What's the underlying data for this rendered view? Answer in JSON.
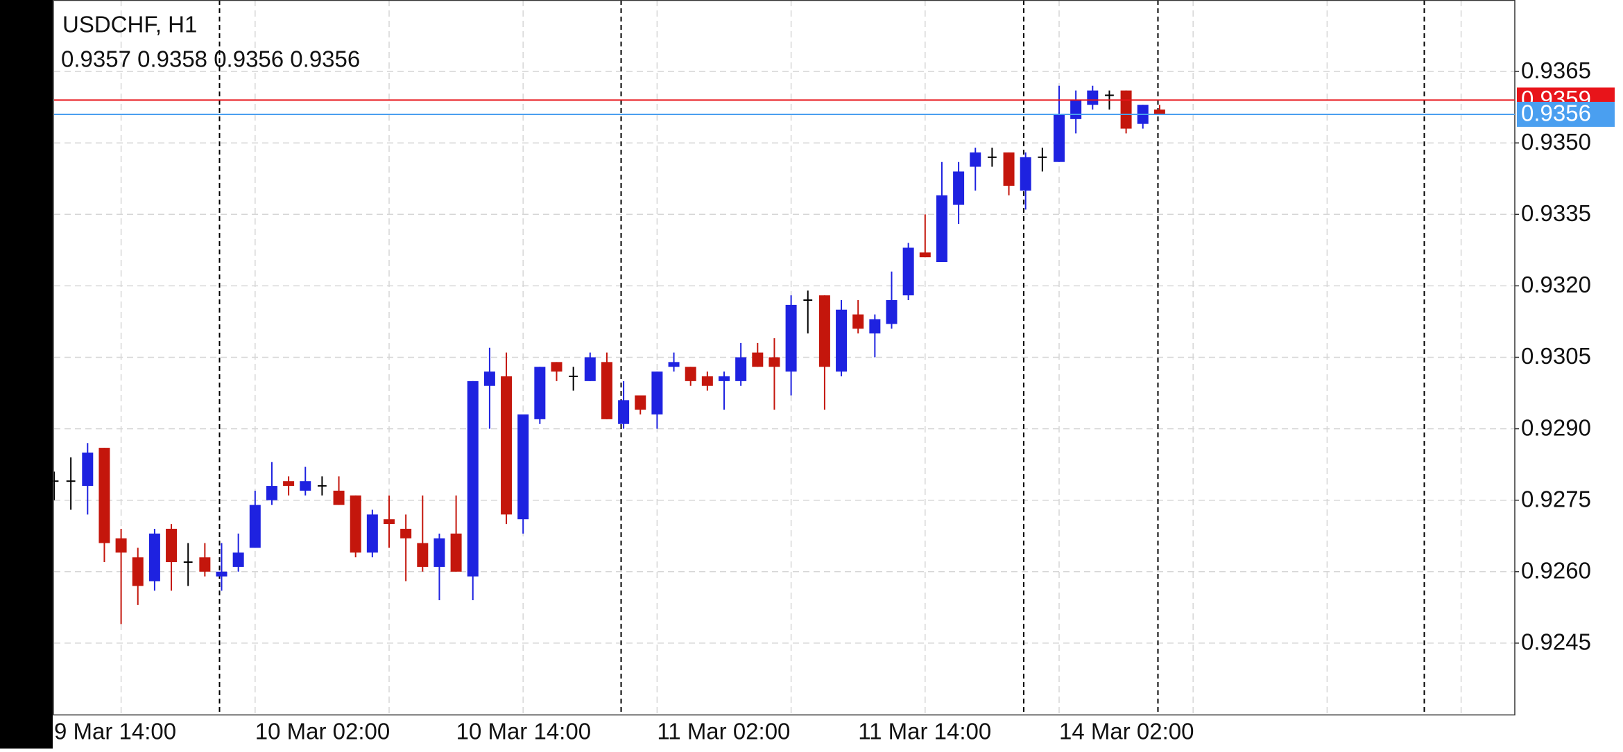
{
  "chart_data": {
    "type": "candlestick",
    "title": "USDCHF, H1",
    "subtitle": "0.9357 0.9358 0.9356 0.9356",
    "categories": [
      "9 Mar 14:00",
      null,
      null,
      null,
      null,
      null,
      null,
      null,
      null,
      null,
      null,
      null,
      "10 Mar 02:00",
      null,
      null,
      null,
      null,
      null,
      null,
      null,
      null,
      null,
      null,
      null,
      "10 Mar 14:00",
      null,
      null,
      null,
      null,
      null,
      null,
      null,
      null,
      null,
      null,
      null,
      "11 Mar 02:00",
      null,
      null,
      null,
      null,
      null,
      null,
      null,
      null,
      null,
      null,
      null,
      "11 Mar 14:00",
      null,
      null,
      null,
      null,
      null,
      null,
      null,
      null,
      null,
      null,
      null,
      "14 Mar 02:00",
      null,
      null,
      null,
      null,
      null,
      null
    ],
    "open": [
      0.9279,
      0.9279,
      0.9278,
      0.9286,
      0.9267,
      0.9263,
      0.9258,
      0.9269,
      0.9262,
      0.9263,
      0.9259,
      0.9261,
      0.9265,
      0.9275,
      0.9279,
      0.9277,
      0.9278,
      0.9277,
      0.9276,
      0.9264,
      0.9271,
      0.9269,
      0.9266,
      0.9261,
      0.9268,
      0.9259,
      0.9299,
      0.9301,
      0.9271,
      0.9292,
      0.9304,
      0.9301,
      0.93,
      0.9304,
      0.9291,
      0.9297,
      0.9293,
      0.9303,
      0.9303,
      0.9301,
      0.93,
      0.93,
      0.9306,
      0.9305,
      0.9302,
      0.9317,
      0.9318,
      0.9302,
      0.9314,
      0.931,
      0.9312,
      0.9318,
      0.9327,
      0.9325,
      0.9337,
      0.9345,
      0.9347,
      0.9348,
      0.934,
      0.9347,
      0.9346,
      0.9355,
      0.9358,
      0.936,
      0.9361,
      0.9354,
      0.9357
    ],
    "high": [
      0.9281,
      0.9284,
      0.9287,
      0.9286,
      0.9269,
      0.9265,
      0.9269,
      0.927,
      0.9266,
      0.9266,
      0.9266,
      0.9268,
      0.9277,
      0.9283,
      0.928,
      0.9282,
      0.928,
      0.928,
      0.9276,
      0.9273,
      0.9276,
      0.9272,
      0.9276,
      0.9268,
      0.9276,
      0.93,
      0.9307,
      0.9306,
      0.9293,
      0.9303,
      0.9304,
      0.9303,
      0.9306,
      0.9306,
      0.93,
      0.9297,
      0.9302,
      0.9306,
      0.9303,
      0.9302,
      0.9302,
      0.9308,
      0.9308,
      0.9309,
      0.9318,
      0.9319,
      0.9318,
      0.9317,
      0.9317,
      0.9314,
      0.9323,
      0.9329,
      0.9335,
      0.9346,
      0.9346,
      0.9349,
      0.9349,
      0.9348,
      0.9348,
      0.9349,
      0.9362,
      0.9361,
      0.9362,
      0.9361,
      0.9361,
      0.9358,
      0.9358
    ],
    "low": [
      0.9275,
      0.9273,
      0.9272,
      0.9262,
      0.9249,
      0.9253,
      0.9256,
      0.9256,
      0.9257,
      0.9259,
      0.9256,
      0.926,
      0.9265,
      0.9274,
      0.9276,
      0.9276,
      0.9276,
      0.9274,
      0.9263,
      0.9263,
      0.9265,
      0.9258,
      0.926,
      0.9254,
      0.926,
      0.9254,
      0.929,
      0.927,
      0.9268,
      0.9291,
      0.93,
      0.9298,
      0.93,
      0.9292,
      0.929,
      0.9293,
      0.929,
      0.9302,
      0.9299,
      0.9298,
      0.9294,
      0.9299,
      0.9303,
      0.9294,
      0.9297,
      0.931,
      0.9294,
      0.9301,
      0.931,
      0.9305,
      0.9311,
      0.9317,
      0.9326,
      0.9325,
      0.9333,
      0.934,
      0.9345,
      0.9339,
      0.9336,
      0.9344,
      0.9346,
      0.9352,
      0.9357,
      0.9357,
      0.9352,
      0.9353,
      0.9356
    ],
    "close": [
      0.9279,
      0.9279,
      0.9285,
      0.9266,
      0.9264,
      0.9257,
      0.9268,
      0.9262,
      0.9262,
      0.926,
      0.926,
      0.9264,
      0.9274,
      0.9278,
      0.9278,
      0.9279,
      0.9278,
      0.9274,
      0.9264,
      0.9272,
      0.927,
      0.9267,
      0.9261,
      0.9267,
      0.926,
      0.93,
      0.9302,
      0.9272,
      0.9293,
      0.9303,
      0.9302,
      0.9301,
      0.9305,
      0.9292,
      0.9296,
      0.9294,
      0.9302,
      0.9304,
      0.93,
      0.9299,
      0.9301,
      0.9305,
      0.9303,
      0.9303,
      0.9316,
      0.9317,
      0.9303,
      0.9315,
      0.9311,
      0.9313,
      0.9317,
      0.9328,
      0.9326,
      0.9339,
      0.9344,
      0.9348,
      0.9347,
      0.9341,
      0.9347,
      0.9347,
      0.9356,
      0.9359,
      0.9361,
      0.936,
      0.9353,
      0.9358,
      0.9356
    ],
    "up_color": "#1e22e0",
    "down_color": "#c4160c",
    "doji_color": "#000000",
    "ylim": [
      0.923,
      0.938
    ],
    "yticks": [
      0.9245,
      {
        "value": 0.926,
        "label": "0.9260"
      },
      0.9275,
      {
        "value": 0.929,
        "label": "0.9290"
      },
      0.9305,
      {
        "value": 0.932,
        "label": "0.9320"
      },
      0.9335,
      {
        "value": 0.935,
        "label": "0.9350"
      },
      0.9365
    ],
    "price_lines": [
      {
        "value": 0.9359,
        "label": "0.9359",
        "color": "#e8141a"
      },
      {
        "value": 0.9356,
        "label": "0.9356",
        "color": "#4a9ff0"
      }
    ],
    "grid": true
  }
}
